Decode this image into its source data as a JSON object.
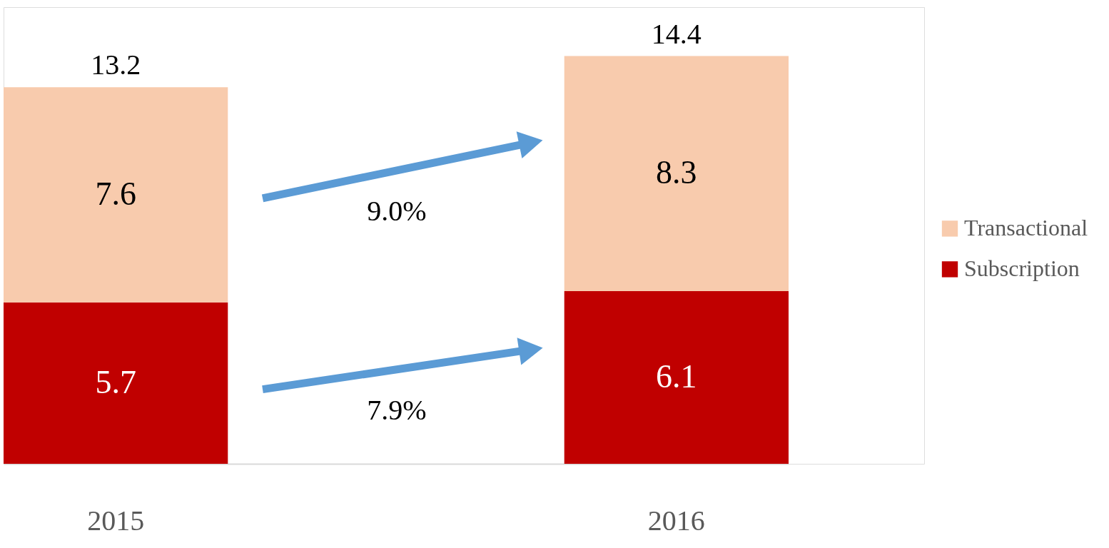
{
  "chart_data": {
    "type": "bar",
    "stacked": true,
    "categories": [
      "2015",
      "2016"
    ],
    "series": [
      {
        "name": "Subscription",
        "color": "#c00000",
        "values": [
          5.7,
          6.1
        ]
      },
      {
        "name": "Transactional",
        "color": "#f8cbad",
        "values": [
          7.6,
          8.3
        ]
      }
    ],
    "totals": [
      "13.2",
      "14.4"
    ],
    "data_labels": true,
    "legend": "right",
    "tick_labels": "x",
    "grid": false,
    "annotations": [
      "9.0%",
      "7.9%"
    ]
  }
}
